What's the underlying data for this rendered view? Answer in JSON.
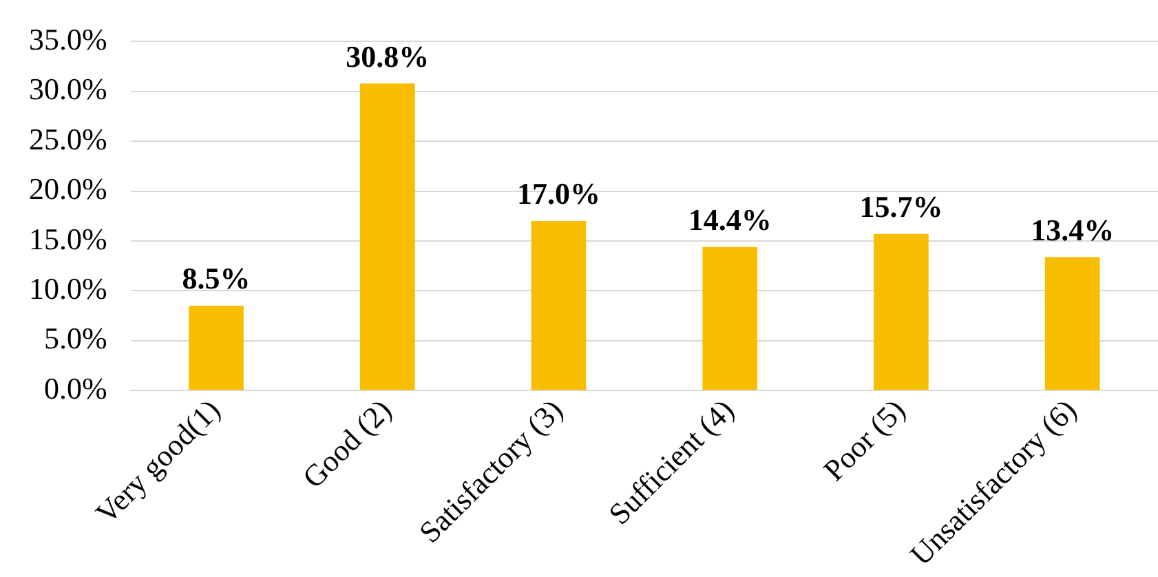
{
  "chart_data": {
    "type": "bar",
    "categories": [
      "Very good(1)",
      "Good (2)",
      "Satisfactory (3)",
      "Sufficient (4)",
      "Poor (5)",
      "Unsatisfactory (6)"
    ],
    "values": [
      8.5,
      30.8,
      17.0,
      14.4,
      15.7,
      13.4
    ],
    "value_labels": [
      "8.5%",
      "30.8%",
      "17.0%",
      "14.4%",
      "15.7%",
      "13.4%"
    ],
    "color": "#f9bd00",
    "ylim": [
      0,
      35
    ],
    "yticks": [
      {
        "value": 0,
        "label": "0.0%"
      },
      {
        "value": 5,
        "label": "5.0%"
      },
      {
        "value": 10,
        "label": "10.0%"
      },
      {
        "value": 15,
        "label": "15.0%"
      },
      {
        "value": 20,
        "label": "20.0%"
      },
      {
        "value": 25,
        "label": "25.0%"
      },
      {
        "value": 30,
        "label": "30.0%"
      },
      {
        "value": 35,
        "label": "35.0%"
      }
    ],
    "grid": "y"
  }
}
